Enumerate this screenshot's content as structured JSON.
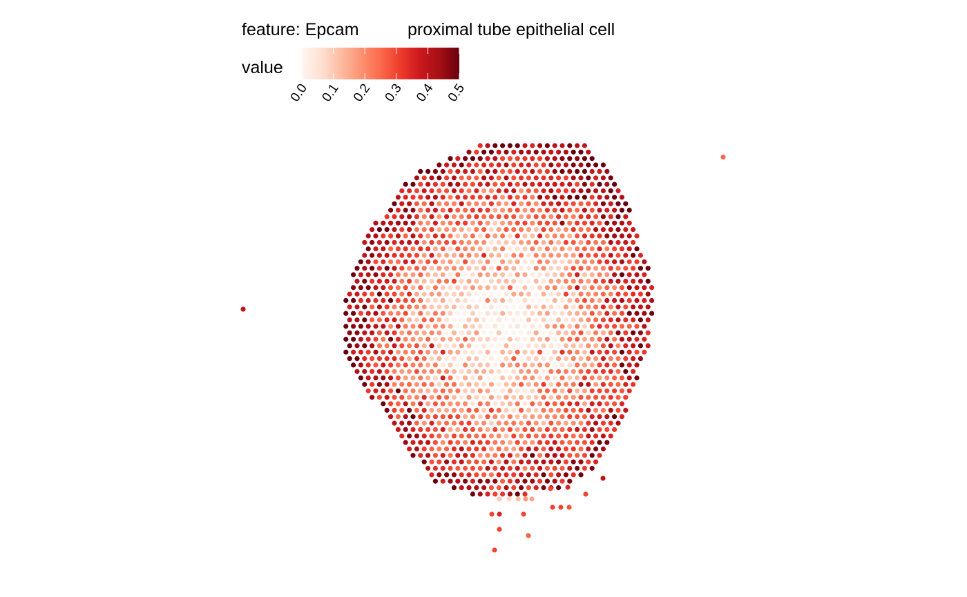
{
  "chart_data": {
    "type": "scatter",
    "title": "feature:  Epcam",
    "subtitle": "proximal tube epithelial cell",
    "legend": {
      "title": "value",
      "placement": "top",
      "range": [
        0,
        0.5
      ],
      "ticks": [
        "0.0",
        "0.1",
        "0.2",
        "0.3",
        "0.4",
        "0.5"
      ],
      "palette": [
        "#fff5f0",
        "#fee0d2",
        "#fcbba1",
        "#fc9272",
        "#fb6a4a",
        "#ef3b2c",
        "#cb181d",
        "#a50f15",
        "#67000d"
      ]
    },
    "axes": "none",
    "grid": false,
    "x_range": [
      0,
      1
    ],
    "y_range": [
      0,
      1
    ],
    "points_description": "hexagonal spot array; values low (near 0) in the centre, rising to ~0.3-0.5 toward the tissue edges",
    "outlier_points": [
      {
        "x": 0.0,
        "y": 0.6,
        "value": 0.4
      },
      {
        "x": 1.0,
        "y": 0.98,
        "value": 0.25
      }
    ]
  }
}
